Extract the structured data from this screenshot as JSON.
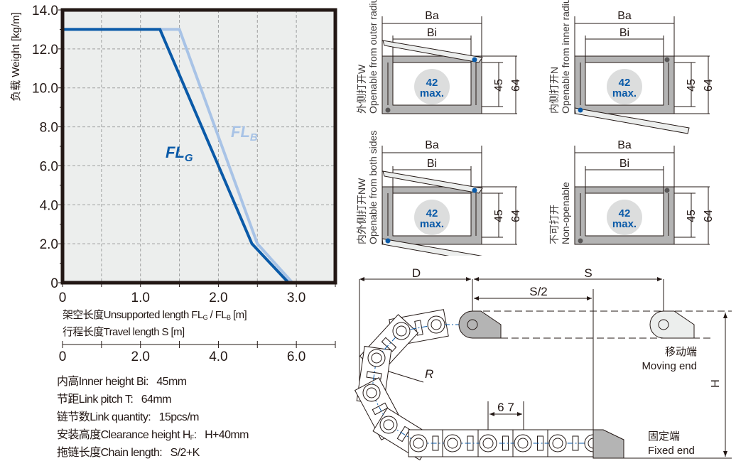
{
  "chart_data": {
    "type": "line",
    "ylabel": "负载 Weight [kg/m]",
    "xlabel": "架空长度Unsupported length FL",
    "xlabel_sub1": "G",
    "xlabel_mid": " / FL",
    "xlabel_sub2": "B",
    "xlabel_end": " [m]",
    "xlim": [
      0,
      3.5
    ],
    "ylim": [
      0,
      14
    ],
    "x_ticks": [
      "0",
      "1.0",
      "2.0",
      "3.0"
    ],
    "y_ticks": [
      "0",
      "2.0",
      "4.0",
      "6.0",
      "8.0",
      "10.0",
      "12.0",
      "14.0"
    ],
    "grid": true,
    "background": "#eceeed",
    "series": [
      {
        "name": "FL",
        "sub": "G",
        "color": "#0a5aa8",
        "x": [
          0,
          1.25,
          2.43,
          2.9
        ],
        "y": [
          13,
          13,
          2,
          0
        ]
      },
      {
        "name": "FL",
        "sub": "B",
        "color": "#a8c3e6",
        "x": [
          1.25,
          1.5,
          2.5,
          2.95
        ],
        "y": [
          13,
          13,
          2,
          0
        ]
      }
    ],
    "secondary_axis": {
      "label": "行程长度Travel length S [m]",
      "range": [
        0,
        7
      ],
      "ticks": [
        "0",
        "2.0",
        "4.0",
        "6.0"
      ]
    }
  },
  "specs": [
    {
      "label": "内高Inner height Bi:",
      "value": "45mm"
    },
    {
      "label": "节距Link pitch T:",
      "value": "64mm"
    },
    {
      "label": "链节数Link quantity:",
      "value": "15pcs/m"
    },
    {
      "label": "安装高度Clearance height H",
      "sub": "F",
      "label_end": ":",
      "value": "H+40mm"
    },
    {
      "label": "拖链长度Chain length:",
      "value": "S/2+K"
    }
  ],
  "cross_sections": [
    {
      "cn": "外侧打开W",
      "en": "Openable from outer radius",
      "lid_top": true,
      "lid_bottom": false
    },
    {
      "cn": "内侧打开N",
      "en": "Openable from inner radius",
      "lid_top": false,
      "lid_bottom": true
    },
    {
      "cn": "内外侧打开NW",
      "en": "Openable from both sides",
      "lid_top": true,
      "lid_bottom": true
    },
    {
      "cn": "不可打开",
      "en": "Non-openable",
      "lid_top": false,
      "lid_bottom": false
    }
  ],
  "section_labels": {
    "ba": "Ba",
    "bi": "Bi",
    "inner": "45",
    "outer": "64",
    "max_num": "42",
    "max_text": "max."
  },
  "colors": {
    "accent": "#0a5aa8",
    "frame": "#b4b4b4",
    "circle": "#dcdddd",
    "hinge_grey": "#595757"
  },
  "chain": {
    "d": "D",
    "s": "S",
    "s_half": "S/2",
    "r": "R",
    "h": "H",
    "pitch": "6 7",
    "moving_cn": "移动端",
    "moving_en": "Moving end",
    "fixed_cn": "固定端",
    "fixed_en": "Fixed end"
  }
}
